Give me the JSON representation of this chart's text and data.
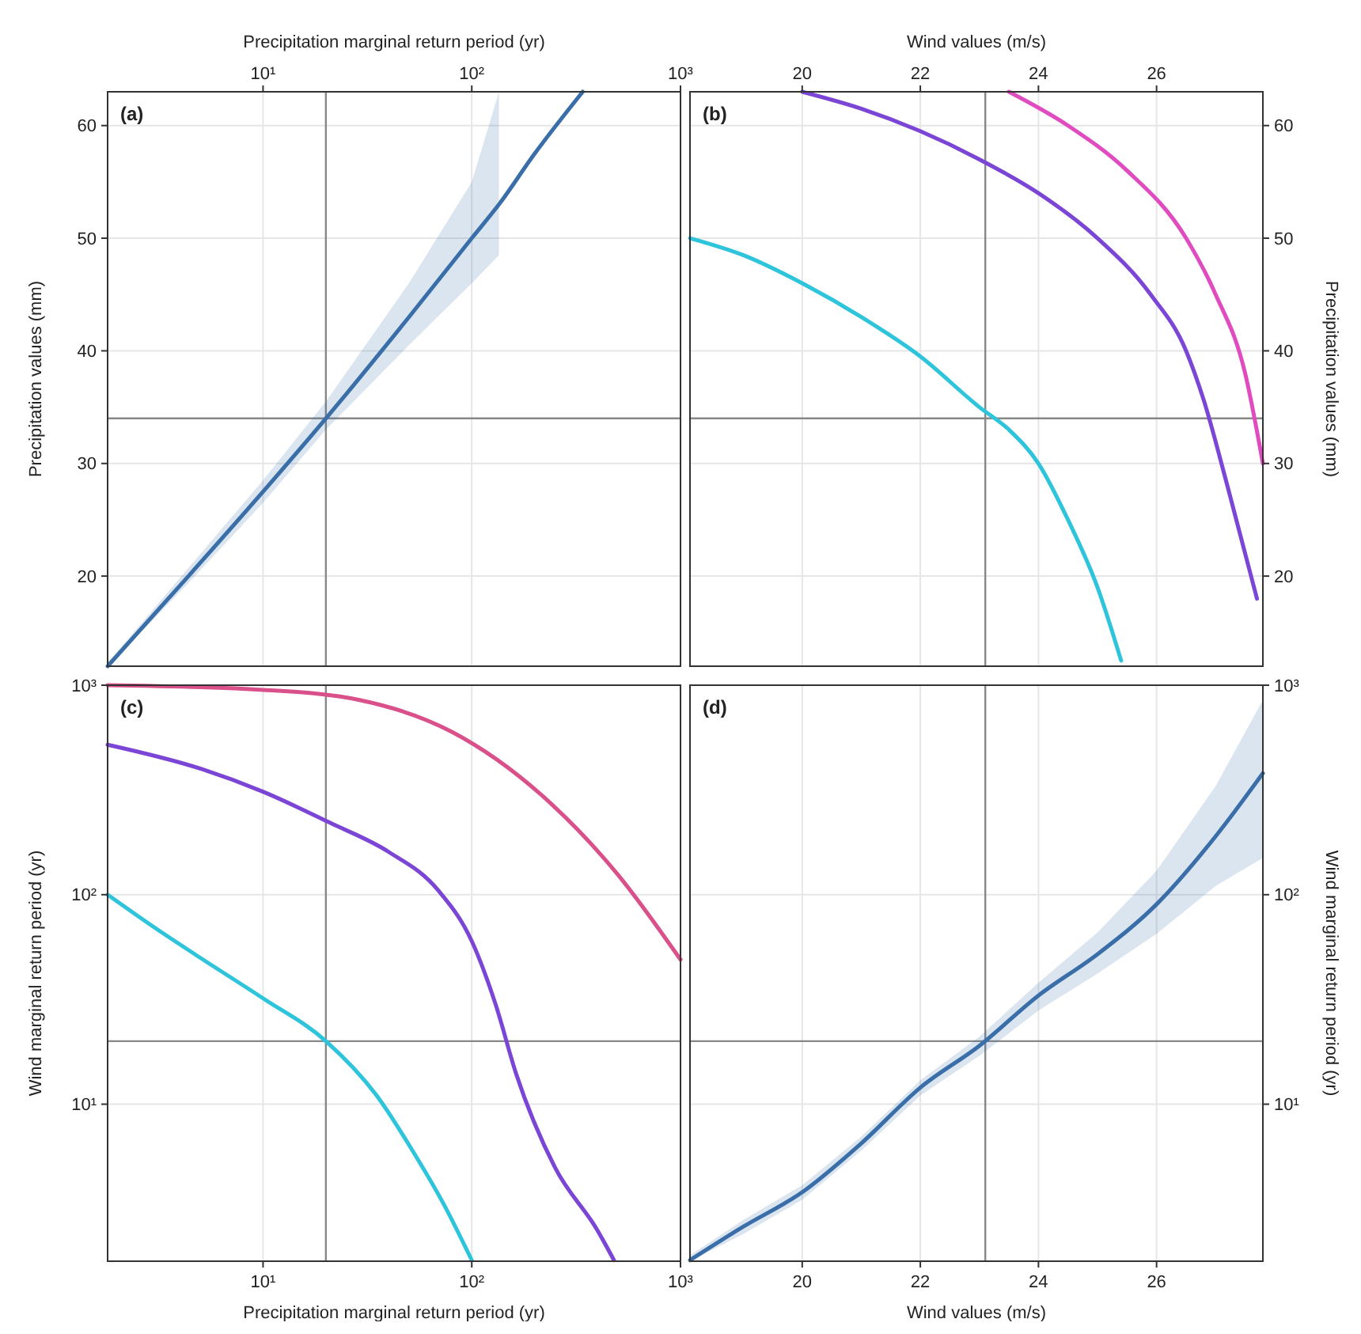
{
  "chart_data": [
    {
      "type": "line",
      "xlabel": "Precipitation marginal return period (yr)",
      "ylabel": "Precipitation values (mm)",
      "log": "x",
      "grid": true,
      "xlim": [
        1.8,
        1000
      ],
      "xticks": [
        {
          "value": 10,
          "label": "10¹"
        },
        {
          "value": 100,
          "label": "10²"
        },
        {
          "value": 1000,
          "label": "10³"
        }
      ],
      "ylim": [
        12,
        63
      ],
      "yticks": [
        20,
        30,
        40,
        50,
        60
      ],
      "annotations": [
        "(a)"
      ],
      "ref_lines": [
        {
          "axis": "x",
          "value": 20,
          "color": "#888888"
        },
        {
          "axis": "y",
          "value": 34,
          "color": "#888888"
        }
      ],
      "series": [
        {
          "color": "#3a6ea8",
          "x": [
            1.8,
            4.2,
            10,
            20,
            50,
            100,
            135,
            200,
            340
          ],
          "values": [
            12,
            19.6,
            27.5,
            34,
            43,
            50,
            53,
            57.5,
            63
          ],
          "upper": [
            12.3,
            20.3,
            28.5,
            35.5,
            46,
            55,
            63,
            null,
            null
          ],
          "lower": [
            12,
            19,
            26.5,
            33,
            40.5,
            46,
            48.5,
            null,
            null
          ]
        }
      ]
    },
    {
      "type": "line",
      "xlabel": "Wind values (m/s)",
      "ylabel": "Precipitation values (mm)",
      "grid": true,
      "xlim": [
        18.1,
        27.8
      ],
      "xticks": [
        20,
        22,
        24,
        26
      ],
      "ylim": [
        12,
        63
      ],
      "yticks": [
        20,
        30,
        40,
        50,
        60
      ],
      "annotations": [
        "(b)"
      ],
      "ref_lines": [
        {
          "axis": "x",
          "value": 23.1,
          "color": "#888888"
        },
        {
          "axis": "y",
          "value": 34,
          "color": "#888888"
        }
      ],
      "series": [
        {
          "color": "#2ec4dc",
          "x": [
            18.1,
            19,
            20,
            21,
            22,
            23,
            23.5,
            24,
            24.5,
            25,
            25.4
          ],
          "values": [
            50,
            48.5,
            46,
            43,
            39.5,
            35,
            33,
            30,
            25,
            19,
            12.5
          ]
        },
        {
          "color": "#7b45d6",
          "x": [
            20,
            21,
            22,
            23,
            24,
            25,
            25.9,
            26.5,
            26.8,
            27.2,
            27.7
          ],
          "values": [
            63,
            61.5,
            59.5,
            57,
            54,
            50,
            45,
            40,
            35.6,
            28,
            18
          ]
        },
        {
          "color": "#e04cc0",
          "x": [
            23.5,
            24.5,
            25.5,
            26.5,
            27,
            27.5,
            27.8
          ],
          "values": [
            63,
            60,
            56,
            50,
            45,
            38,
            30
          ]
        }
      ]
    },
    {
      "type": "line",
      "xlabel": "Precipitation marginal return period (yr)",
      "ylabel": "Wind marginal return period (yr)",
      "log": "xy",
      "grid": true,
      "xlim": [
        1.8,
        1000
      ],
      "xticks": [
        {
          "value": 10,
          "label": "10¹"
        },
        {
          "value": 100,
          "label": "10²"
        },
        {
          "value": 1000,
          "label": "10³"
        }
      ],
      "ylim": [
        1.78,
        1000
      ],
      "yticks": [
        {
          "value": 10,
          "label": "10¹"
        },
        {
          "value": 100,
          "label": "10²"
        },
        {
          "value": 1000,
          "label": "10³"
        }
      ],
      "annotations": [
        "(c)"
      ],
      "ref_lines": [
        {
          "axis": "x",
          "value": 20,
          "color": "#888888"
        },
        {
          "axis": "y",
          "value": 20,
          "color": "#888888"
        }
      ],
      "series": [
        {
          "color": "#2ec4dc",
          "x": [
            1.8,
            3,
            5,
            10,
            20,
            35,
            52,
            75,
            100
          ],
          "values": [
            100,
            70,
            50,
            32,
            20,
            11,
            6,
            3.2,
            1.8
          ]
        },
        {
          "color": "#7b45d6",
          "x": [
            1.8,
            5,
            10,
            21,
            40,
            69,
            100,
            130,
            163,
            250,
            400,
            480
          ],
          "values": [
            520,
            400,
            310,
            220,
            160,
            105,
            60,
            30,
            14,
            5,
            2.5,
            1.8
          ]
        },
        {
          "color": "#d9508a",
          "x": [
            1.8,
            10,
            29,
            80,
            215,
            500,
            1000
          ],
          "values": [
            1000,
            950,
            850,
            600,
            300,
            125,
            49
          ]
        }
      ]
    },
    {
      "type": "line",
      "xlabel": "Wind values (m/s)",
      "ylabel": "Wind marginal return period (yr)",
      "log": "y",
      "grid": true,
      "xlim": [
        18.1,
        27.8
      ],
      "xticks": [
        20,
        22,
        24,
        26
      ],
      "ylim": [
        1.78,
        1000
      ],
      "yticks": [
        {
          "value": 10,
          "label": "10¹"
        },
        {
          "value": 100,
          "label": "10²"
        },
        {
          "value": 1000,
          "label": "10³"
        }
      ],
      "annotations": [
        "(d)"
      ],
      "ref_lines": [
        {
          "axis": "x",
          "value": 23.1,
          "color": "#888888"
        },
        {
          "axis": "y",
          "value": 20,
          "color": "#888888"
        }
      ],
      "series": [
        {
          "color": "#3a6ea8",
          "x": [
            18.1,
            19,
            20,
            21,
            22,
            23,
            24,
            25,
            26,
            27,
            27.8
          ],
          "values": [
            1.8,
            2.6,
            3.8,
            6.5,
            12,
            19,
            33,
            52,
            90,
            190,
            380
          ],
          "upper": [
            1.9,
            2.8,
            4.1,
            7,
            13,
            21,
            38,
            66,
            130,
            330,
            850
          ],
          "lower": [
            1.78,
            2.4,
            3.5,
            6,
            11,
            17,
            28,
            42,
            65,
            110,
            150
          ]
        }
      ]
    }
  ]
}
